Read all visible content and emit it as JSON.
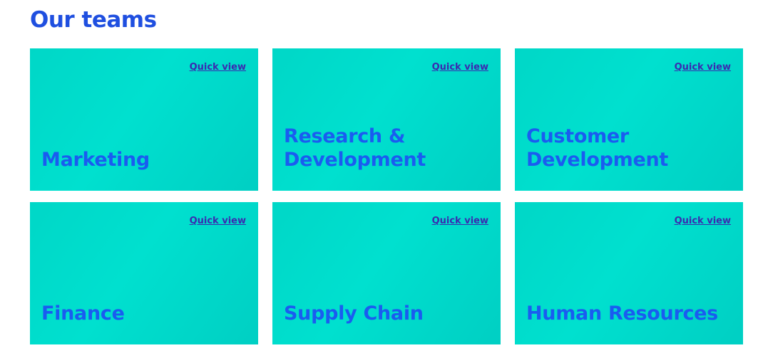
{
  "page": {
    "title": "Our teams"
  },
  "colors": {
    "title": "#1f4fe0",
    "card_background": "#00d8c8",
    "team_name": "#1a5cf0",
    "link": "#3a2bb0",
    "page_background": "#ffffff"
  },
  "teams": [
    {
      "name": "Marketing",
      "link_label": "Quick view"
    },
    {
      "name": "Research & Development",
      "link_label": "Quick view"
    },
    {
      "name": "Customer Development",
      "link_label": "Quick view"
    },
    {
      "name": "Finance",
      "link_label": "Quick view"
    },
    {
      "name": "Supply Chain",
      "link_label": "Quick view"
    },
    {
      "name": "Human Resources",
      "link_label": "Quick view"
    }
  ]
}
